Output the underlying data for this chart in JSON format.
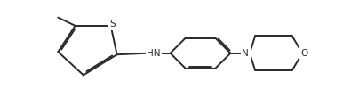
{
  "background_color": "#ffffff",
  "line_color": "#2a2a2a",
  "line_width": 1.4,
  "text_color": "#2a2a2a",
  "font_size": 7.5,
  "label_HN": "HN",
  "label_N": "N",
  "label_O": "O",
  "label_S": "S",
  "fig_w": 4.04,
  "fig_h": 1.19,
  "dpi": 100,
  "xlim": [
    0,
    404
  ],
  "ylim": [
    0,
    119
  ]
}
